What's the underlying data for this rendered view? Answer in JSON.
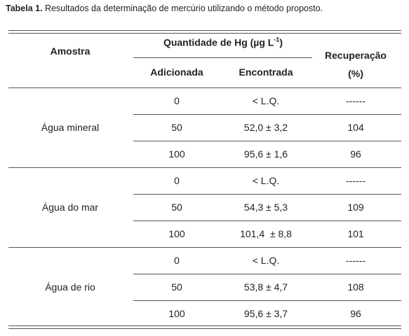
{
  "caption": {
    "label": "Tabela 1.",
    "text": " Resultados da determinação de mercúrio utilizando o método proposto."
  },
  "header": {
    "sample": "Amostra",
    "quantity": {
      "text": "Quantidade de Hg (µg L",
      "sup": "-1",
      "close": ")"
    },
    "added": "Adicionada",
    "found": "Encontrada",
    "recovery": [
      "Recuperação",
      "(%)"
    ]
  },
  "groups": [
    {
      "sample": "Água mineral",
      "rows": [
        [
          "0",
          "< L.Q.",
          "------"
        ],
        [
          "50",
          "52,0 ± 3,2",
          "104"
        ],
        [
          "100",
          "95,6 ± 1,6",
          "96"
        ]
      ]
    },
    {
      "sample": "Água do mar",
      "rows": [
        [
          "0",
          "< L.Q.",
          "------"
        ],
        [
          "50",
          "54,3 ± 5,3",
          "109"
        ],
        [
          "100",
          "101,4  ± 8,8",
          "101"
        ]
      ]
    },
    {
      "sample": "Água de rio",
      "rows": [
        [
          "0",
          "< L.Q.",
          "------"
        ],
        [
          "50",
          "53,8 ± 4,7",
          "108"
        ],
        [
          "100",
          "95,6 ± 3,7",
          "96"
        ]
      ]
    }
  ]
}
